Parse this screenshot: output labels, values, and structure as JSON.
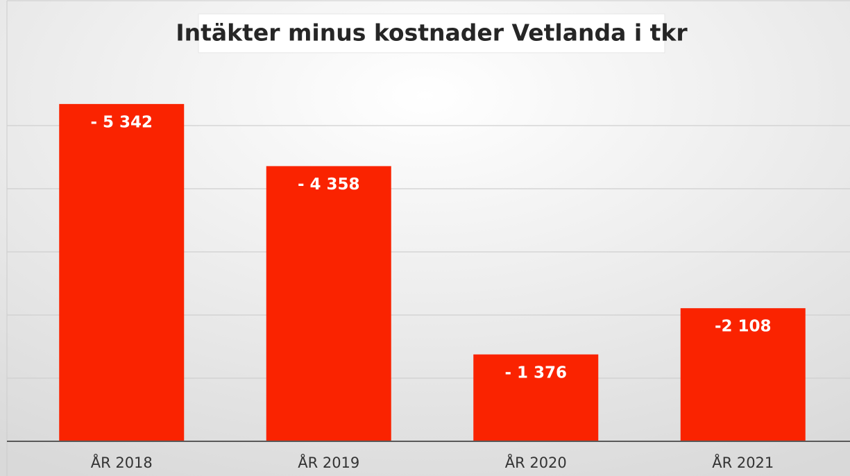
{
  "chart_data": {
    "type": "bar",
    "title": "Intäkter minus kostnader Vetlanda i tkr",
    "categories": [
      "ÅR 2018",
      "ÅR 2019",
      "ÅR 2020",
      "ÅR 2021"
    ],
    "values": [
      -5342,
      -4358,
      -1376,
      -2108
    ],
    "value_labels": [
      "- 5 342",
      "- 4 358",
      "- 1 376",
      "-2 108"
    ],
    "color": "#fa2300",
    "ylim": [
      0,
      -6000
    ],
    "yticks": [
      0,
      -1000,
      -2000,
      -3000,
      -4000,
      -5000
    ],
    "grid": true
  }
}
